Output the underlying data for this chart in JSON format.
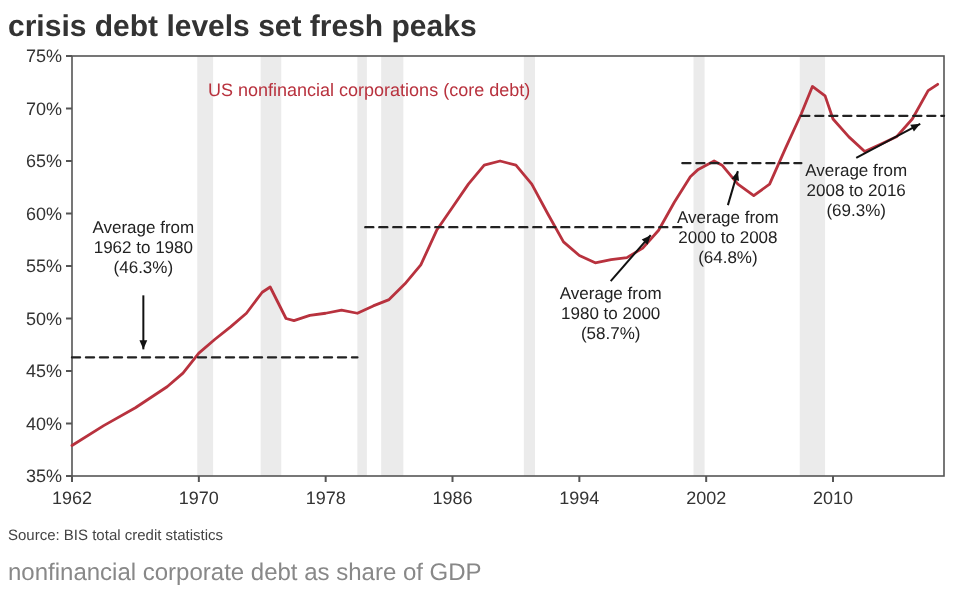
{
  "chart_data": {
    "type": "line",
    "title": "crisis debt levels set fresh peaks",
    "x": [
      1962,
      1964,
      1966,
      1968,
      1969,
      1970,
      1971,
      1972,
      1973,
      1974,
      1974.5,
      1975,
      1975.5,
      1976,
      1977,
      1978,
      1979,
      1980,
      1981,
      1982,
      1983,
      1984,
      1985,
      1986,
      1987,
      1988,
      1989,
      1990,
      1991,
      1992,
      1993,
      1994,
      1995,
      1996,
      1997,
      1998,
      1999,
      2000,
      2001,
      2001.5,
      2002.5,
      2003,
      2004,
      2005,
      2006,
      2007,
      2008,
      2008.7,
      2009.5,
      2010,
      2011,
      2012,
      2013,
      2014,
      2015,
      2016,
      2016.6
    ],
    "series": [
      {
        "name": "US nonfinancial corporations (core debt)",
        "color": "#b8323e",
        "values": [
          37.9,
          39.8,
          41.5,
          43.5,
          44.8,
          46.7,
          48.0,
          49.2,
          50.5,
          52.5,
          53.0,
          51.5,
          50.0,
          49.8,
          50.3,
          50.5,
          50.8,
          50.5,
          51.2,
          51.8,
          53.3,
          55.1,
          58.4,
          60.6,
          62.8,
          64.6,
          65.0,
          64.6,
          62.8,
          60.0,
          57.3,
          56.0,
          55.3,
          55.6,
          55.8,
          56.7,
          58.4,
          61.1,
          63.5,
          64.2,
          65.0,
          64.6,
          62.8,
          61.7,
          62.8,
          66.2,
          69.5,
          72.1,
          71.2,
          69.0,
          67.3,
          65.9,
          66.6,
          67.3,
          69.0,
          71.7,
          72.3
        ]
      },
      {
        "type": "line",
        "color": "#222222",
        "line_style": "dashed",
        "x": [
          1962,
          1980
        ],
        "values": [
          46.3,
          46.3
        ]
      },
      {
        "type": "line",
        "color": "#222222",
        "line_style": "dashed",
        "x": [
          1980.5,
          2000.5
        ],
        "values": [
          58.7,
          58.7
        ]
      },
      {
        "type": "line",
        "color": "#222222",
        "line_style": "dashed",
        "x": [
          2000.5,
          2008
        ],
        "values": [
          64.8,
          64.8
        ]
      },
      {
        "type": "line",
        "color": "#222222",
        "line_style": "dashed",
        "x": [
          2008,
          2017
        ],
        "values": [
          69.3,
          69.3
        ]
      }
    ],
    "xlim": [
      1962,
      2017
    ],
    "xticks": [
      1962,
      1970,
      1978,
      1986,
      1994,
      2002,
      2010
    ],
    "ylim": [
      35,
      75
    ],
    "yticks": [
      {
        "value": 35,
        "label": "35%"
      },
      {
        "value": 40,
        "label": "40%"
      },
      {
        "value": 45,
        "label": "45%"
      },
      {
        "value": 50,
        "label": "50%"
      },
      {
        "value": 55,
        "label": "55%"
      },
      {
        "value": 60,
        "label": "60%"
      },
      {
        "value": 65,
        "label": "65%"
      },
      {
        "value": 70,
        "label": "70%"
      },
      {
        "value": 75,
        "label": "75%"
      }
    ],
    "bands": [
      {
        "axis": "x",
        "from": 1969.9,
        "to": 1970.9,
        "color": "#ebebeb"
      },
      {
        "axis": "x",
        "from": 1973.9,
        "to": 1975.2,
        "color": "#ebebeb"
      },
      {
        "axis": "x",
        "from": 1980.0,
        "to": 1980.6,
        "color": "#ebebeb"
      },
      {
        "axis": "x",
        "from": 1981.5,
        "to": 1982.9,
        "color": "#ebebeb"
      },
      {
        "axis": "x",
        "from": 1990.5,
        "to": 1991.2,
        "color": "#ebebeb"
      },
      {
        "axis": "x",
        "from": 2001.2,
        "to": 2001.9,
        "color": "#ebebeb"
      },
      {
        "axis": "x",
        "from": 2007.9,
        "to": 2009.5,
        "color": "#ebebeb"
      }
    ],
    "annotations": [
      {
        "text": "Average from\n1962 to 1980\n(46.3%)",
        "x": 1966.5,
        "y": 46.3
      },
      {
        "text": "Average from\n1980 to 2000\n(58.7%)",
        "x": 1998.5,
        "y": 58.7
      },
      {
        "text": "Average from\n2000 to 2008\n(64.8%)",
        "x": 2004,
        "y": 64.8
      },
      {
        "text": "Average from\n2008 to 2016\n(69.3%)",
        "x": 2015.5,
        "y": 69.3
      },
      "Source: BIS total credit statistics",
      "nonfinancial corporate debt as share of GDP"
    ],
    "grid": false,
    "marker": "none",
    "line_style": "solid"
  }
}
